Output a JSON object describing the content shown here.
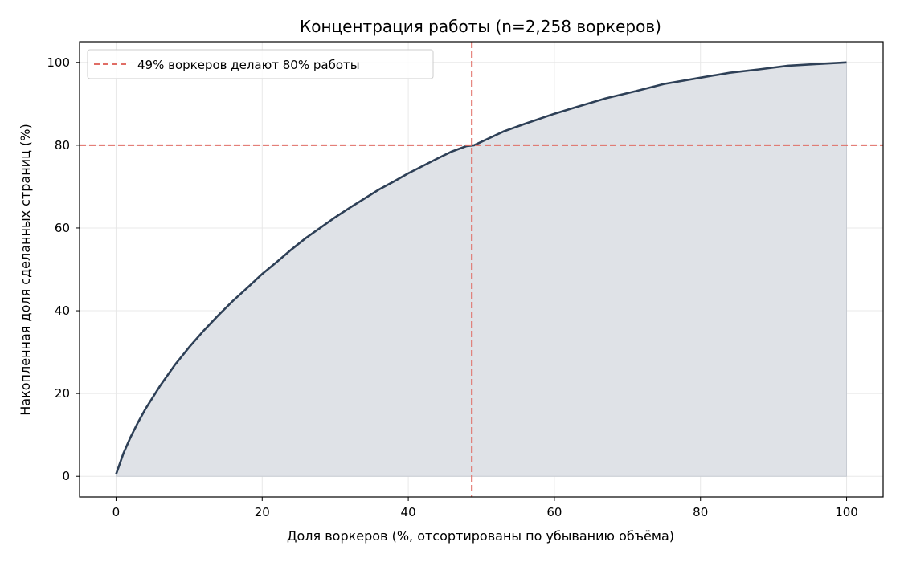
{
  "chart_data": {
    "type": "area",
    "title": "Концентрация работы (n=2,258 воркеров)",
    "xlabel": "Доля воркеров (%, отсортированы по убыванию объёма)",
    "ylabel": "Накопленная доля сделанных страниц (%)",
    "xlim": [
      -5,
      105
    ],
    "ylim": [
      -5,
      105
    ],
    "xticks": [
      0,
      20,
      40,
      60,
      80,
      100
    ],
    "yticks": [
      0,
      20,
      40,
      60,
      80,
      100
    ],
    "grid": true,
    "legend_position": "top-left",
    "series": [
      {
        "name": "",
        "color": "#2e4057",
        "fill": "#dfe2e7",
        "x": [
          0,
          1,
          2,
          3,
          4,
          5,
          6,
          8,
          10,
          12,
          14,
          16,
          18,
          20,
          22,
          24,
          26,
          28,
          30,
          32,
          34,
          36,
          38,
          40,
          42,
          44,
          46,
          48,
          49,
          50,
          53,
          56,
          60,
          63,
          67,
          71,
          75,
          80,
          84,
          88,
          92,
          96,
          100
        ],
        "y": [
          0.5,
          5.5,
          9.5,
          13,
          16.2,
          19,
          21.8,
          26.8,
          31.2,
          35.2,
          38.9,
          42.4,
          45.6,
          48.9,
          51.8,
          54.8,
          57.6,
          60.1,
          62.6,
          64.9,
          67.1,
          69.3,
          71.2,
          73.2,
          75.0,
          76.8,
          78.5,
          79.8,
          80.0,
          80.8,
          83.3,
          85.2,
          87.6,
          89.2,
          91.3,
          93.0,
          94.8,
          96.3,
          97.5,
          98.3,
          99.2,
          99.6,
          100
        ]
      }
    ],
    "reference_lines": {
      "x": 48.7,
      "y": 80,
      "color": "#e06d65",
      "legend_label": "49% воркеров делают 80% работы"
    }
  }
}
